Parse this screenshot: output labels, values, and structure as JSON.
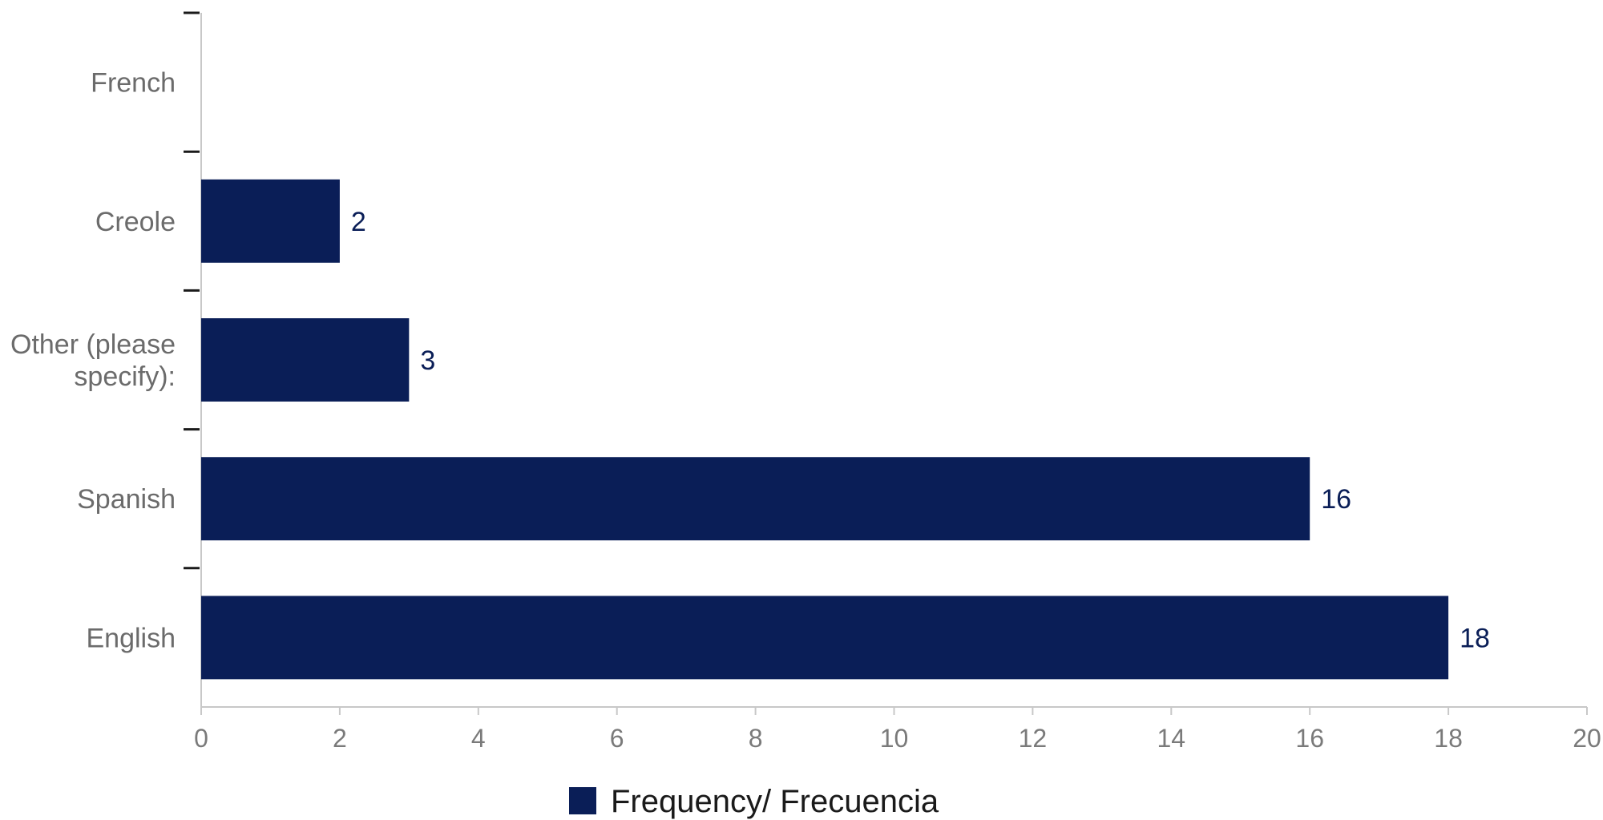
{
  "chart_data": {
    "type": "bar",
    "orientation": "horizontal",
    "categories": [
      "French",
      "Creole",
      "Other (please specify):",
      "Spanish",
      "English"
    ],
    "series": [
      {
        "name": "Frequency/ Frecuencia",
        "values": [
          0,
          2,
          3,
          16,
          18
        ],
        "value_labels": [
          "",
          "2",
          "3",
          "16",
          "18"
        ],
        "color": "#0a1e57"
      }
    ],
    "xlim": [
      0,
      20
    ],
    "x_ticks": [
      "0",
      "2",
      "4",
      "6",
      "8",
      "10",
      "12",
      "14",
      "16",
      "18",
      "20"
    ],
    "title": "",
    "xlabel": "",
    "ylabel": "",
    "grid": false,
    "legend": {
      "position": "bottom-center"
    }
  }
}
